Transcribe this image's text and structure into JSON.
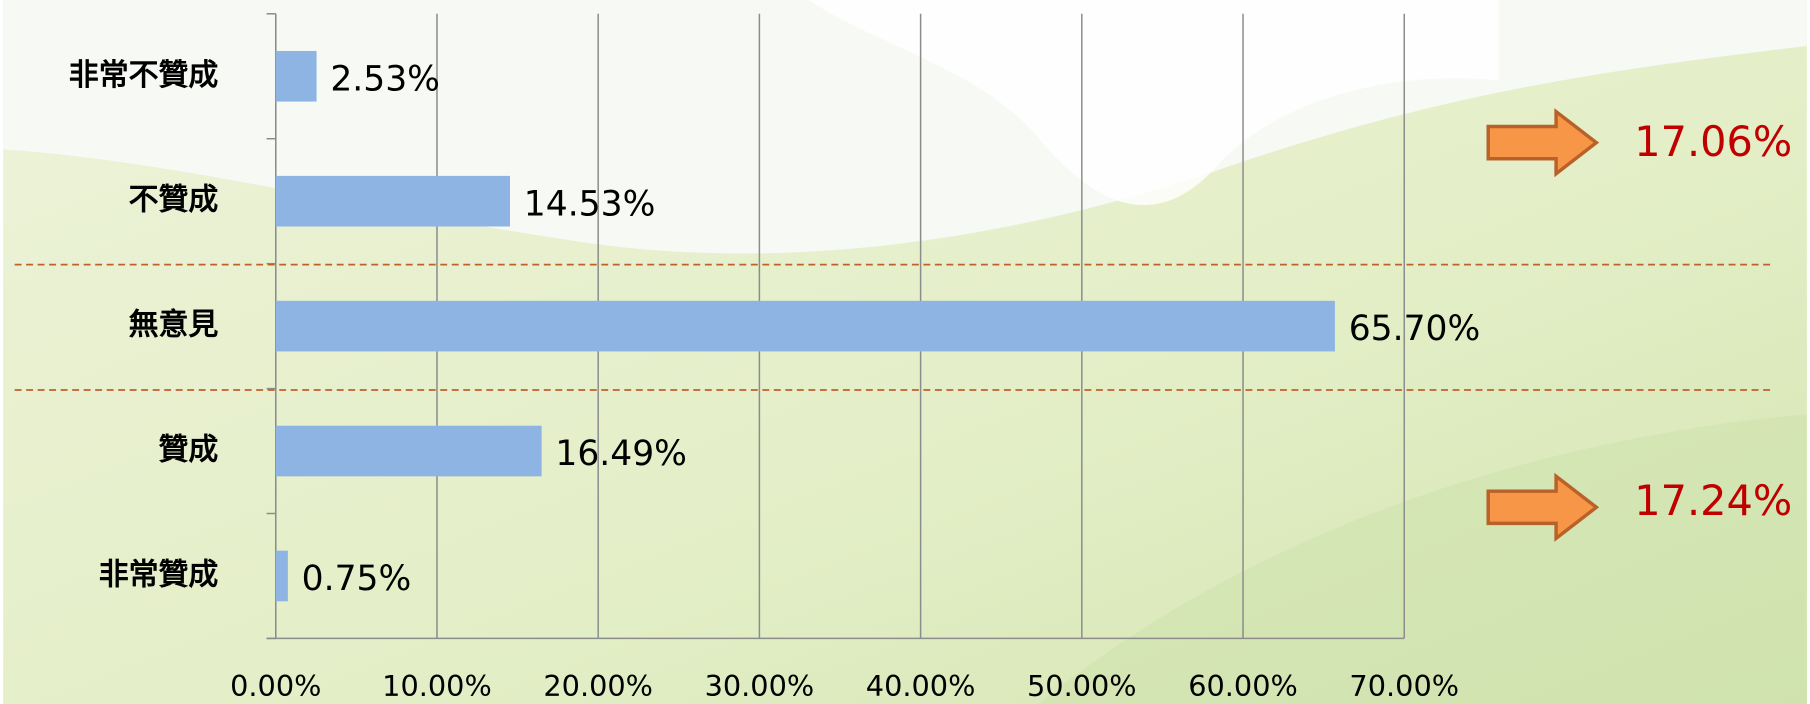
{
  "chart_data": {
    "type": "bar",
    "orientation": "horizontal",
    "categories": [
      "非常不贊成",
      "不贊成",
      "無意見",
      "贊成",
      "非常贊成"
    ],
    "values": [
      2.53,
      14.53,
      65.7,
      16.49,
      0.75
    ],
    "value_labels": [
      "2.53%",
      "14.53%",
      "65.70%",
      "16.49%",
      "0.75%"
    ],
    "color": "#8eb4e3",
    "xlim": [
      0,
      70
    ],
    "xticks": [
      {
        "value": 0,
        "label": "0.00%"
      },
      {
        "value": 10,
        "label": "10.00%"
      },
      {
        "value": 20,
        "label": "20.00%"
      },
      {
        "value": 30,
        "label": "30.00%"
      },
      {
        "value": 40,
        "label": "40.00%"
      },
      {
        "value": 50,
        "label": "50.00%"
      },
      {
        "value": 60,
        "label": "60.00%"
      },
      {
        "value": 70,
        "label": "70.00%"
      }
    ],
    "grid": true,
    "annotations": [
      "17.06%",
      "17.24%"
    ]
  }
}
